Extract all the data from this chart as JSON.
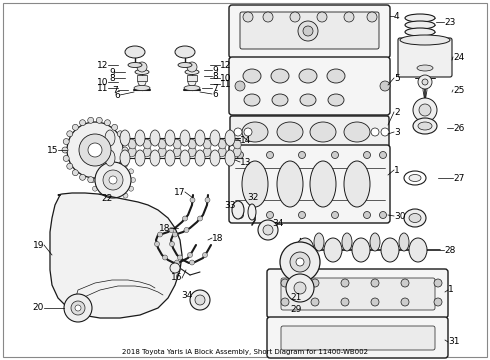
{
  "title": "2018 Toyota Yaris iA Block Assembly, Short Diagram for 11400-WB002",
  "background_color": "#ffffff",
  "line_color": "#1a1a1a",
  "figsize": [
    4.9,
    3.6
  ],
  "dpi": 100,
  "label_fontsize": 6.5,
  "border_color": "#888888"
}
